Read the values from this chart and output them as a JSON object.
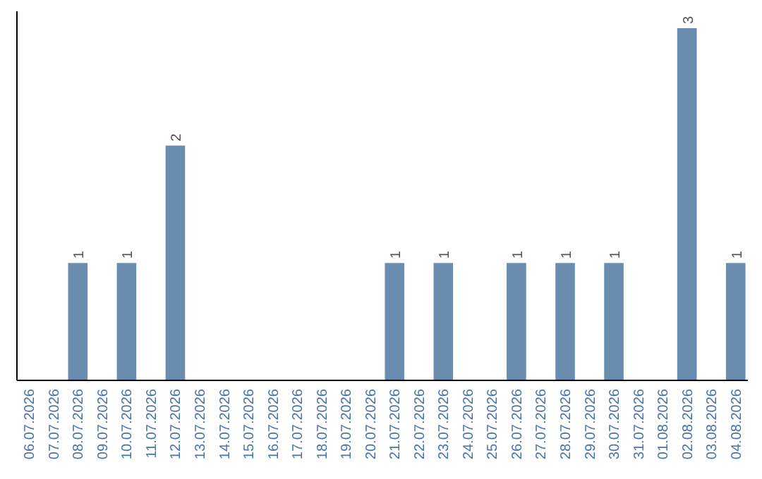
{
  "chart_data": {
    "type": "bar",
    "categories": [
      "06.07.2026",
      "07.07.2026",
      "08.07.2026",
      "09.07.2026",
      "10.07.2026",
      "11.07.2026",
      "12.07.2026",
      "13.07.2026",
      "14.07.2026",
      "15.07.2026",
      "16.07.2026",
      "17.07.2026",
      "18.07.2026",
      "19.07.2026",
      "20.07.2026",
      "21.07.2026",
      "22.07.2026",
      "23.07.2026",
      "24.07.2026",
      "25.07.2026",
      "26.07.2026",
      "27.07.2026",
      "28.07.2026",
      "29.07.2026",
      "30.07.2026",
      "31.07.2026",
      "01.08.2026",
      "02.08.2026",
      "03.08.2026",
      "04.08.2026"
    ],
    "values": [
      null,
      null,
      1,
      null,
      1,
      null,
      2,
      null,
      null,
      null,
      null,
      null,
      null,
      null,
      null,
      1,
      null,
      1,
      null,
      null,
      1,
      null,
      1,
      null,
      1,
      null,
      null,
      3,
      null,
      1
    ],
    "color": "#6a8caf",
    "data_labels": true,
    "tick_labels": "x"
  }
}
